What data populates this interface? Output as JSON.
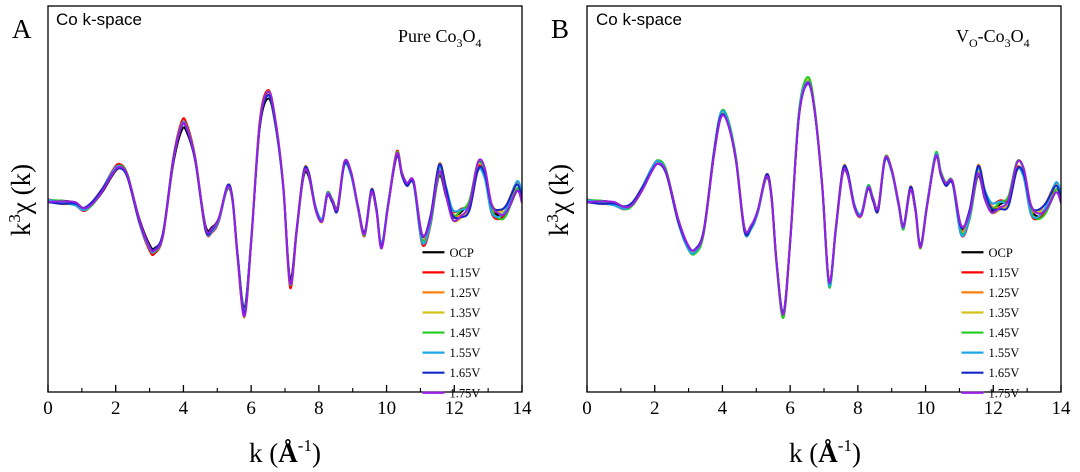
{
  "chart_data": [
    {
      "type": "line",
      "panel_letter": "A",
      "corner_label": "Co  k-space",
      "sample_label": {
        "text": "Pure Co",
        "sub1": "3",
        "mid": "O",
        "sub2": "4"
      },
      "xlabel": {
        "base": "k (",
        "unit": "Å",
        "sup": "-1",
        "close": ")"
      },
      "ylabel": {
        "base": "k",
        "sup": "3",
        "rest": "χ (k)"
      },
      "xlim": [
        0,
        14
      ],
      "ylim": [
        -1,
        1
      ],
      "x_ticks": [
        "0",
        "2",
        "4",
        "6",
        "8",
        "10",
        "12",
        "14"
      ],
      "legend_position": "bottom-right",
      "base_curve": [
        [
          0,
          0
        ],
        [
          0.4,
          -0.01
        ],
        [
          0.8,
          -0.02
        ],
        [
          1.05,
          -0.06
        ],
        [
          1.3,
          -0.02
        ],
        [
          1.6,
          0.08
        ],
        [
          1.9,
          0.2
        ],
        [
          2.1,
          0.25
        ],
        [
          2.35,
          0.18
        ],
        [
          2.7,
          -0.15
        ],
        [
          3.0,
          -0.34
        ],
        [
          3.15,
          -0.36
        ],
        [
          3.4,
          -0.24
        ],
        [
          3.7,
          0.3
        ],
        [
          3.95,
          0.55
        ],
        [
          4.1,
          0.53
        ],
        [
          4.35,
          0.3
        ],
        [
          4.65,
          -0.2
        ],
        [
          4.85,
          -0.21
        ],
        [
          5.05,
          -0.13
        ],
        [
          5.3,
          0.1
        ],
        [
          5.45,
          0.01
        ],
        [
          5.6,
          -0.4
        ],
        [
          5.8,
          -0.82
        ],
        [
          6.0,
          -0.3
        ],
        [
          6.25,
          0.55
        ],
        [
          6.5,
          0.78
        ],
        [
          6.7,
          0.6
        ],
        [
          6.95,
          0.1
        ],
        [
          7.15,
          -0.6
        ],
        [
          7.35,
          -0.2
        ],
        [
          7.55,
          0.2
        ],
        [
          7.7,
          0.2
        ],
        [
          7.9,
          -0.05
        ],
        [
          8.1,
          -0.14
        ],
        [
          8.25,
          0.05
        ],
        [
          8.4,
          0.0
        ],
        [
          8.55,
          -0.06
        ],
        [
          8.75,
          0.27
        ],
        [
          8.95,
          0.2
        ],
        [
          9.15,
          -0.04
        ],
        [
          9.35,
          -0.24
        ],
        [
          9.55,
          0.07
        ],
        [
          9.7,
          -0.06
        ],
        [
          9.85,
          -0.33
        ],
        [
          10.05,
          -0.02
        ],
        [
          10.3,
          0.34
        ],
        [
          10.45,
          0.2
        ],
        [
          10.6,
          0.12
        ],
        [
          10.8,
          0.13
        ],
        [
          11.05,
          -0.27
        ],
        [
          11.3,
          -0.14
        ],
        [
          11.55,
          0.23
        ],
        [
          11.75,
          0.08
        ],
        [
          11.95,
          -0.1
        ],
        [
          12.2,
          -0.09
        ],
        [
          12.45,
          -0.03
        ],
        [
          12.7,
          0.25
        ],
        [
          12.9,
          0.2
        ],
        [
          13.1,
          -0.05
        ],
        [
          13.35,
          -0.1
        ],
        [
          13.55,
          -0.06
        ],
        [
          13.85,
          0.11
        ],
        [
          14.0,
          0.02
        ]
      ],
      "series": [
        {
          "name": "OCP",
          "color": "#000000",
          "scale": 0.93
        },
        {
          "name": "1.15V",
          "color": "#ff0000",
          "scale": 1.02
        },
        {
          "name": "1.25V",
          "color": "#ff7f0e",
          "scale": 1.0
        },
        {
          "name": "1.35V",
          "color": "#d4c41a",
          "scale": 1.01
        },
        {
          "name": "1.45V",
          "color": "#22cc22",
          "scale": 0.99
        },
        {
          "name": "1.55V",
          "color": "#1ea7e8",
          "scale": 0.98
        },
        {
          "name": "1.65V",
          "color": "#1428c8",
          "scale": 0.99
        },
        {
          "name": "1.75V",
          "color": "#9a1ee6",
          "scale": 1.0
        }
      ]
    },
    {
      "type": "line",
      "panel_letter": "B",
      "corner_label": "Co  k-space",
      "sample_label": {
        "text": "V",
        "sub1": "O",
        "mid": "-Co",
        "sub2": "3",
        "tail": "O",
        "sub3": "4"
      },
      "xlabel": {
        "base": "k (",
        "unit": "Å",
        "sup": "-1",
        "close": ")"
      },
      "ylabel": {
        "base": "k",
        "sup": "3",
        "rest": "χ (k)"
      },
      "xlim": [
        0,
        14
      ],
      "ylim": [
        -1,
        1
      ],
      "x_ticks": [
        "0",
        "2",
        "4",
        "6",
        "8",
        "10",
        "12",
        "14"
      ],
      "legend_position": "bottom-right",
      "base_curve": [
        [
          0,
          0
        ],
        [
          0.4,
          -0.01
        ],
        [
          0.8,
          -0.02
        ],
        [
          1.1,
          -0.05
        ],
        [
          1.35,
          -0.02
        ],
        [
          1.65,
          0.1
        ],
        [
          1.9,
          0.22
        ],
        [
          2.1,
          0.28
        ],
        [
          2.35,
          0.2
        ],
        [
          2.7,
          -0.15
        ],
        [
          3.0,
          -0.34
        ],
        [
          3.2,
          -0.36
        ],
        [
          3.45,
          -0.22
        ],
        [
          3.75,
          0.35
        ],
        [
          3.95,
          0.62
        ],
        [
          4.15,
          0.58
        ],
        [
          4.4,
          0.3
        ],
        [
          4.65,
          -0.21
        ],
        [
          4.85,
          -0.19
        ],
        [
          5.05,
          -0.07
        ],
        [
          5.3,
          0.18
        ],
        [
          5.45,
          0.03
        ],
        [
          5.6,
          -0.45
        ],
        [
          5.8,
          -0.82
        ],
        [
          6.0,
          -0.3
        ],
        [
          6.25,
          0.6
        ],
        [
          6.5,
          0.86
        ],
        [
          6.7,
          0.7
        ],
        [
          6.95,
          0.1
        ],
        [
          7.15,
          -0.6
        ],
        [
          7.35,
          -0.2
        ],
        [
          7.55,
          0.21
        ],
        [
          7.7,
          0.2
        ],
        [
          7.9,
          -0.04
        ],
        [
          8.1,
          -0.1
        ],
        [
          8.3,
          0.1
        ],
        [
          8.45,
          0.01
        ],
        [
          8.6,
          -0.06
        ],
        [
          8.8,
          0.3
        ],
        [
          9.0,
          0.22
        ],
        [
          9.2,
          -0.02
        ],
        [
          9.35,
          -0.19
        ],
        [
          9.55,
          0.09
        ],
        [
          9.7,
          -0.06
        ],
        [
          9.85,
          -0.33
        ],
        [
          10.05,
          -0.02
        ],
        [
          10.3,
          0.33
        ],
        [
          10.45,
          0.2
        ],
        [
          10.6,
          0.12
        ],
        [
          10.8,
          0.13
        ],
        [
          11.05,
          -0.21
        ],
        [
          11.3,
          -0.1
        ],
        [
          11.55,
          0.22
        ],
        [
          11.75,
          0.05
        ],
        [
          11.95,
          -0.05
        ],
        [
          12.2,
          -0.03
        ],
        [
          12.45,
          0.0
        ],
        [
          12.7,
          0.25
        ],
        [
          12.9,
          0.2
        ],
        [
          13.1,
          -0.05
        ],
        [
          13.3,
          -0.1
        ],
        [
          13.55,
          -0.05
        ],
        [
          13.85,
          0.1
        ],
        [
          14.0,
          0.02
        ]
      ],
      "series": [
        {
          "name": "OCP",
          "color": "#000000",
          "scale": 0.97
        },
        {
          "name": "1.15V",
          "color": "#ff0000",
          "scale": 1.0
        },
        {
          "name": "1.25V",
          "color": "#ff7f0e",
          "scale": 1.01
        },
        {
          "name": "1.35V",
          "color": "#d4c41a",
          "scale": 1.01
        },
        {
          "name": "1.45V",
          "color": "#22cc22",
          "scale": 1.02
        },
        {
          "name": "1.55V",
          "color": "#1ea7e8",
          "scale": 1.0
        },
        {
          "name": "1.65V",
          "color": "#1428c8",
          "scale": 0.99
        },
        {
          "name": "1.75V",
          "color": "#9a1ee6",
          "scale": 0.98
        }
      ]
    }
  ]
}
